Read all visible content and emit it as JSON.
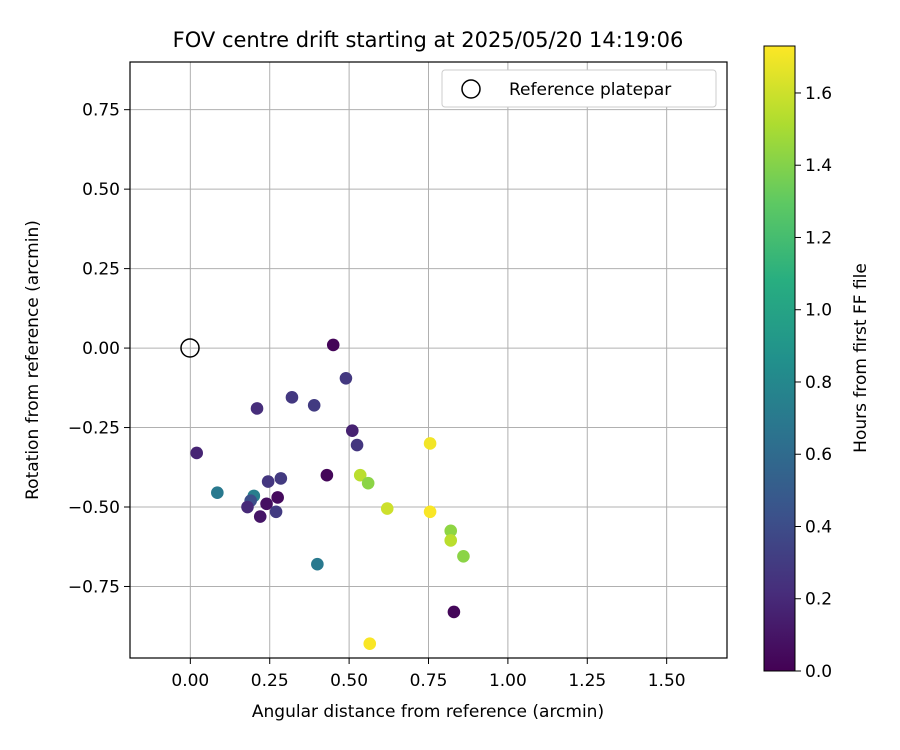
{
  "chart_data": {
    "type": "scatter",
    "title": "FOV centre drift starting at 2025/05/20 14:19:06",
    "xlabel": "Angular distance from reference (arcmin)",
    "ylabel": "Rotation from reference (arcmin)",
    "xlim": [
      -0.19,
      1.69
    ],
    "ylim": [
      -0.975,
      0.9
    ],
    "xticks": [
      "0.00",
      "0.25",
      "0.50",
      "0.75",
      "1.00",
      "1.25",
      "1.50"
    ],
    "yticks": [
      "0.75",
      "0.50",
      "0.25",
      "0.00",
      "−0.25",
      "−0.50",
      "−0.75"
    ],
    "grid": true,
    "legend": {
      "placement": "top-right",
      "entries": [
        "Reference platepar"
      ]
    },
    "reference_point": {
      "x": 0.0,
      "y": 0.0
    },
    "colorbar": {
      "label": "Hours from first FF file",
      "range": [
        0.0,
        1.73
      ],
      "ticks": [
        "0.0",
        "0.2",
        "0.4",
        "0.6",
        "0.8",
        "1.0",
        "1.2",
        "1.4",
        "1.6"
      ],
      "colormap": "viridis"
    },
    "points": [
      {
        "x": 0.45,
        "y": 0.01,
        "h": 0.02
      },
      {
        "x": 0.49,
        "y": -0.095,
        "h": 0.28
      },
      {
        "x": 0.21,
        "y": -0.19,
        "h": 0.22
      },
      {
        "x": 0.32,
        "y": -0.155,
        "h": 0.28
      },
      {
        "x": 0.39,
        "y": -0.18,
        "h": 0.3
      },
      {
        "x": 0.51,
        "y": -0.26,
        "h": 0.16
      },
      {
        "x": 0.525,
        "y": -0.305,
        "h": 0.27
      },
      {
        "x": 0.02,
        "y": -0.33,
        "h": 0.17
      },
      {
        "x": 0.43,
        "y": -0.4,
        "h": 0.03
      },
      {
        "x": 0.245,
        "y": -0.42,
        "h": 0.27
      },
      {
        "x": 0.285,
        "y": -0.41,
        "h": 0.29
      },
      {
        "x": 0.085,
        "y": -0.455,
        "h": 0.7
      },
      {
        "x": 0.2,
        "y": -0.465,
        "h": 0.73
      },
      {
        "x": 0.19,
        "y": -0.48,
        "h": 0.41
      },
      {
        "x": 0.275,
        "y": -0.47,
        "h": 0.05
      },
      {
        "x": 0.24,
        "y": -0.49,
        "h": 0.07
      },
      {
        "x": 0.18,
        "y": -0.5,
        "h": 0.2
      },
      {
        "x": 0.22,
        "y": -0.53,
        "h": 0.1
      },
      {
        "x": 0.27,
        "y": -0.515,
        "h": 0.3
      },
      {
        "x": 0.4,
        "y": -0.68,
        "h": 0.7
      },
      {
        "x": 0.755,
        "y": -0.3,
        "h": 1.7
      },
      {
        "x": 0.535,
        "y": -0.4,
        "h": 1.55
      },
      {
        "x": 0.56,
        "y": -0.425,
        "h": 1.42
      },
      {
        "x": 0.62,
        "y": -0.505,
        "h": 1.6
      },
      {
        "x": 0.755,
        "y": -0.515,
        "h": 1.72
      },
      {
        "x": 0.82,
        "y": -0.575,
        "h": 1.43
      },
      {
        "x": 0.82,
        "y": -0.605,
        "h": 1.55
      },
      {
        "x": 0.86,
        "y": -0.655,
        "h": 1.42
      },
      {
        "x": 0.83,
        "y": -0.83,
        "h": 0.03
      },
      {
        "x": 0.565,
        "y": -0.93,
        "h": 1.72
      }
    ]
  }
}
